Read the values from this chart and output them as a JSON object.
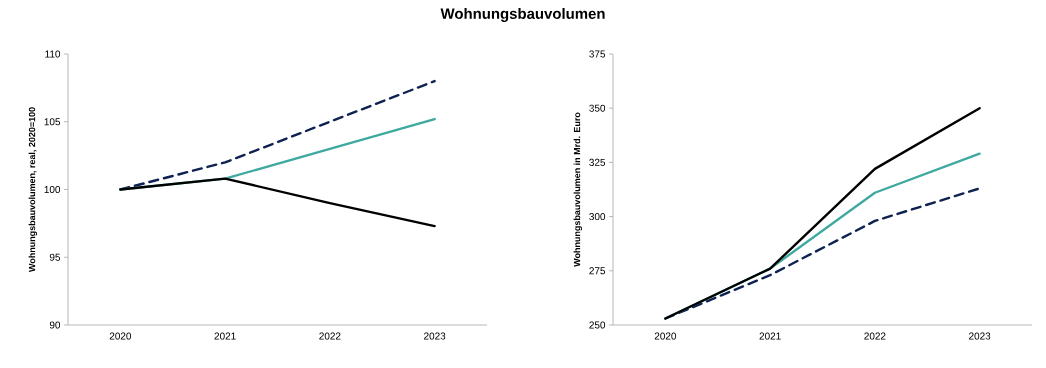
{
  "chart_data": [
    {
      "type": "line",
      "title": "Wohnungsbauvolumen",
      "ylabel": "Wohnungsbauvolumen, real, 2020=100",
      "categories": [
        "2020",
        "2021",
        "2022",
        "2023"
      ],
      "ylim": [
        90,
        110
      ],
      "yticks": [
        90,
        95,
        100,
        105,
        110
      ],
      "series": [
        {
          "color": "#0e2252",
          "line_style": "dashed",
          "values": [
            100,
            102,
            105,
            108
          ]
        },
        {
          "color": "#3fa9a0",
          "line_style": "solid",
          "values": [
            100,
            100.8,
            103,
            105.2
          ]
        },
        {
          "color": "#000000",
          "line_style": "solid",
          "values": [
            100,
            100.8,
            99,
            97.3
          ]
        }
      ]
    },
    {
      "type": "line",
      "ylabel": "Wohnungsbauvolumen in Mrd. Euro",
      "categories": [
        "2020",
        "2021",
        "2022",
        "2023"
      ],
      "ylim": [
        250,
        375
      ],
      "yticks": [
        250,
        275,
        300,
        325,
        350,
        375
      ],
      "series": [
        {
          "color": "#0e2252",
          "line_style": "dashed",
          "values": [
            253,
            273,
            298,
            313
          ]
        },
        {
          "color": "#3fa9a0",
          "line_style": "solid",
          "values": [
            253,
            276,
            311,
            329
          ]
        },
        {
          "color": "#000000",
          "line_style": "solid",
          "values": [
            253,
            276,
            322,
            350
          ]
        }
      ]
    }
  ]
}
